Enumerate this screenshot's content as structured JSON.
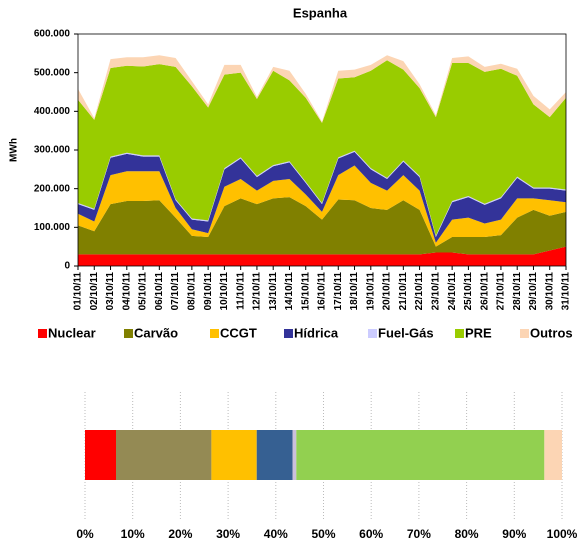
{
  "chart_data": [
    {
      "type": "stacked_area",
      "title": "Espanha",
      "y_label": "MWh",
      "categories": [
        "01/10/11",
        "02/10/11",
        "03/10/11",
        "04/10/11",
        "05/10/11",
        "06/10/11",
        "07/10/11",
        "08/10/11",
        "09/10/11",
        "10/10/11",
        "11/10/11",
        "12/10/11",
        "13/10/11",
        "14/10/11",
        "15/10/11",
        "16/10/11",
        "17/10/11",
        "18/10/11",
        "19/10/11",
        "20/10/11",
        "21/10/11",
        "22/10/11",
        "23/10/11",
        "24/10/11",
        "25/10/11",
        "26/10/11",
        "27/10/11",
        "28/10/11",
        "29/10/11",
        "30/10/11",
        "31/10/11"
      ],
      "series": [
        {
          "name": "Nuclear",
          "color": "#ff0000",
          "values": [
            30000,
            30000,
            30000,
            30000,
            30000,
            30000,
            30000,
            30000,
            30000,
            30000,
            30000,
            30000,
            30000,
            30000,
            30000,
            30000,
            30000,
            30000,
            30000,
            30000,
            30000,
            30000,
            35000,
            35000,
            30000,
            30000,
            30000,
            30000,
            30000,
            40000,
            50000
          ]
        },
        {
          "name": "Carvão",
          "color": "#808000",
          "values": [
            75000,
            60000,
            130000,
            138000,
            138000,
            140000,
            95000,
            48000,
            45000,
            125000,
            145000,
            130000,
            145000,
            148000,
            125000,
            90000,
            142000,
            140000,
            120000,
            115000,
            140000,
            115000,
            15000,
            40000,
            45000,
            45000,
            50000,
            95000,
            115000,
            90000,
            90000
          ]
        },
        {
          "name": "CCGT",
          "color": "#ffc000",
          "values": [
            30000,
            25000,
            75000,
            77000,
            77000,
            75000,
            25000,
            17000,
            10000,
            50000,
            50000,
            35000,
            45000,
            47000,
            30000,
            20000,
            63000,
            90000,
            65000,
            50000,
            65000,
            50000,
            10000,
            45000,
            50000,
            35000,
            40000,
            50000,
            30000,
            40000,
            25000
          ]
        },
        {
          "name": "Hídrica",
          "color": "#333399",
          "values": [
            25000,
            30000,
            45000,
            45000,
            38000,
            38000,
            20000,
            25000,
            30000,
            45000,
            53000,
            35000,
            38000,
            43000,
            30000,
            20000,
            43000,
            35000,
            35000,
            30000,
            35000,
            35000,
            15000,
            45000,
            53000,
            48000,
            55000,
            53000,
            25000,
            30000,
            30000
          ]
        },
        {
          "name": "Fuel-Gás",
          "color": "#ccccff",
          "values": [
            3000,
            3000,
            3000,
            3000,
            3000,
            3000,
            3000,
            3000,
            3000,
            3000,
            3000,
            3000,
            3000,
            3000,
            3000,
            3000,
            3000,
            3000,
            3000,
            3000,
            3000,
            3000,
            3000,
            3000,
            3000,
            3000,
            3000,
            3000,
            3000,
            3000,
            3000
          ]
        },
        {
          "name": "PRE",
          "color": "#99cc00",
          "values": [
            267000,
            230000,
            229000,
            225000,
            230000,
            236000,
            342000,
            342000,
            292000,
            242000,
            219000,
            199000,
            244000,
            209000,
            217000,
            207000,
            204000,
            190000,
            252000,
            304000,
            235000,
            227000,
            307000,
            357000,
            344000,
            341000,
            332000,
            261000,
            215000,
            182000,
            237000
          ]
        },
        {
          "name": "Outros",
          "color": "#fcd5b4",
          "values": [
            28000,
            4000,
            23000,
            22000,
            24000,
            23000,
            23000,
            13000,
            8000,
            25000,
            20000,
            5000,
            10000,
            25000,
            10000,
            3000,
            20000,
            20000,
            15000,
            13000,
            22000,
            10000,
            5000,
            13000,
            17000,
            13000,
            13000,
            18000,
            22000,
            20000,
            15000
          ]
        }
      ],
      "ylim": [
        0,
        600000
      ],
      "yticks": [
        0,
        {
          "value": 100000,
          "label": "100.000"
        },
        {
          "value": 200000,
          "label": "200.000"
        },
        {
          "value": 300000,
          "label": "300.000"
        },
        {
          "value": 400000,
          "label": "400.000"
        },
        {
          "value": 500000,
          "label": "500.000"
        },
        {
          "value": 600000,
          "label": "600.000"
        }
      ],
      "grid": false
    },
    {
      "type": "stacked_bar_100",
      "values": [
        6.5,
        20,
        9.5,
        7.5,
        0.8,
        52,
        3.7
      ],
      "colors": [
        "#ff0000",
        "#948a54",
        "#ffc000",
        "#366092",
        "#ccc0da",
        "#92d050",
        "#fcd5b4"
      ],
      "xlim": [
        0,
        100
      ],
      "xticks": [
        {
          "value": 0,
          "label": "0%"
        },
        {
          "value": 10,
          "label": "10%"
        },
        {
          "value": 20,
          "label": "20%"
        },
        {
          "value": 30,
          "label": "30%"
        },
        {
          "value": 40,
          "label": "40%"
        },
        {
          "value": 50,
          "label": "50%"
        },
        {
          "value": 60,
          "label": "60%"
        },
        {
          "value": 70,
          "label": "70%"
        },
        {
          "value": 80,
          "label": "80%"
        },
        {
          "value": 90,
          "label": "90%"
        },
        {
          "value": 100,
          "label": "100%"
        }
      ],
      "grid": true
    }
  ]
}
